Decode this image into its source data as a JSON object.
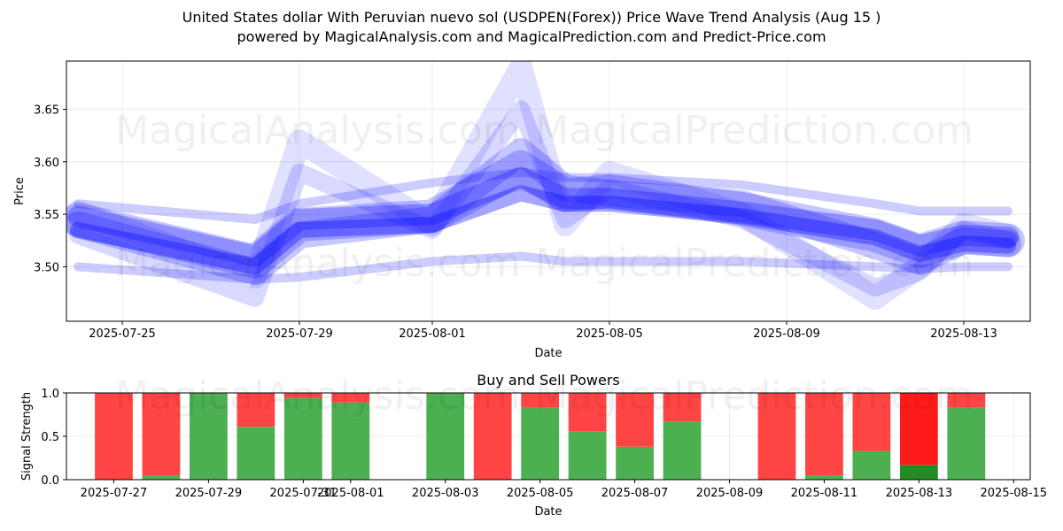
{
  "header": {
    "title_line1": "United States dollar With Peruvian nuevo sol (USDPEN(Forex)) Price Wave Trend Analysis (Aug 15 )",
    "title_line2": "powered by MagicalAnalysis.com and MagicalPrediction.com and Predict-Price.com"
  },
  "watermarks": [
    "MagicalAnalysis.com",
    "MagicalPrediction.com"
  ],
  "chart_data": [
    {
      "type": "line",
      "xlabel": "Date",
      "ylabel": "Price",
      "x_ticks": [
        "2025-07-25",
        "2025-07-29",
        "2025-08-01",
        "2025-08-05",
        "2025-08-09",
        "2025-08-13"
      ],
      "y_ticks": [
        3.5,
        3.55,
        3.6,
        3.65
      ],
      "xlim": [
        "2025-07-24",
        "2025-08-15"
      ],
      "ylim": [
        3.448,
        3.696
      ],
      "grid": true,
      "x": [
        "2025-07-24",
        "2025-07-28",
        "2025-07-29",
        "2025-08-01",
        "2025-08-03",
        "2025-08-04",
        "2025-08-05",
        "2025-08-08",
        "2025-08-11",
        "2025-08-12",
        "2025-08-13",
        "2025-08-14"
      ],
      "series": [
        {
          "color": "#0000ff",
          "values": [
            3.545,
            3.505,
            3.54,
            3.548,
            3.595,
            3.568,
            3.572,
            3.555,
            3.53,
            3.515,
            3.528,
            3.525
          ]
        },
        {
          "color": "#0000ff",
          "values": [
            3.54,
            3.495,
            3.53,
            3.545,
            3.61,
            3.575,
            3.57,
            3.56,
            3.52,
            3.505,
            3.525,
            3.522
          ]
        },
        {
          "color": "#0000ff",
          "values": [
            3.548,
            3.51,
            3.545,
            3.55,
            3.585,
            3.565,
            3.565,
            3.552,
            3.535,
            3.52,
            3.53,
            3.528
          ]
        },
        {
          "color": "#0000ff",
          "values": [
            3.535,
            3.5,
            3.535,
            3.54,
            3.57,
            3.56,
            3.56,
            3.548,
            3.528,
            3.512,
            3.522,
            3.52
          ]
        },
        {
          "color": "#0000ff",
          "values": [
            3.552,
            3.49,
            3.62,
            3.54,
            3.69,
            3.54,
            3.59,
            3.55,
            3.47,
            3.5,
            3.54,
            3.53
          ]
        },
        {
          "color": "#0000ff",
          "values": [
            3.53,
            3.47,
            3.59,
            3.535,
            3.65,
            3.545,
            3.575,
            3.545,
            3.48,
            3.495,
            3.535,
            3.525
          ]
        },
        {
          "color": "#0000ff",
          "values": [
            3.5,
            3.488,
            3.49,
            3.505,
            3.51,
            3.505,
            3.505,
            3.505,
            3.5,
            3.498,
            3.5,
            3.5
          ]
        },
        {
          "color": "#0000ff",
          "values": [
            3.56,
            3.545,
            3.56,
            3.58,
            3.59,
            3.585,
            3.585,
            3.578,
            3.56,
            3.553,
            3.553,
            3.553
          ]
        }
      ]
    },
    {
      "type": "bar",
      "title": "Buy and Sell Powers",
      "xlabel": "Date",
      "ylabel": "Signal Strength",
      "x_ticks": [
        "2025-07-27",
        "2025-07-29",
        "2025-07-31",
        "2025-08-01",
        "2025-08-03",
        "2025-08-05",
        "2025-08-07",
        "2025-08-09",
        "2025-08-11",
        "2025-08-13",
        "2025-08-15"
      ],
      "xlim": [
        "2025-07-26",
        "2025-08-15"
      ],
      "ylim": [
        0,
        1
      ],
      "y_ticks": [
        0.0,
        0.5,
        1.0
      ],
      "grid": true,
      "categories": [
        "2025-07-27",
        "2025-07-28",
        "2025-07-29",
        "2025-07-30",
        "2025-07-31",
        "2025-08-01",
        "2025-08-03",
        "2025-08-04",
        "2025-08-05",
        "2025-08-06",
        "2025-08-07",
        "2025-08-08",
        "2025-08-10",
        "2025-08-11",
        "2025-08-12",
        "2025-08-13",
        "2025-08-14"
      ],
      "series": [
        {
          "name": "Buy",
          "color": "#4caf50",
          "values": [
            0.0,
            0.05,
            1.0,
            0.61,
            0.94,
            0.89,
            1.0,
            0.0,
            0.83,
            0.56,
            0.38,
            0.67,
            0.0,
            0.05,
            0.33,
            0.17,
            0.83
          ]
        },
        {
          "name": "Sell",
          "color": "#ff4444",
          "values": [
            1.0,
            0.95,
            0.0,
            0.39,
            0.06,
            0.11,
            0.0,
            1.0,
            0.17,
            0.44,
            0.62,
            0.33,
            1.0,
            0.95,
            0.67,
            0.83,
            0.17
          ]
        }
      ],
      "highlight": {
        "category": "2025-08-13",
        "buy_color": "#228b22",
        "sell_color": "#ff1a1a"
      }
    }
  ]
}
